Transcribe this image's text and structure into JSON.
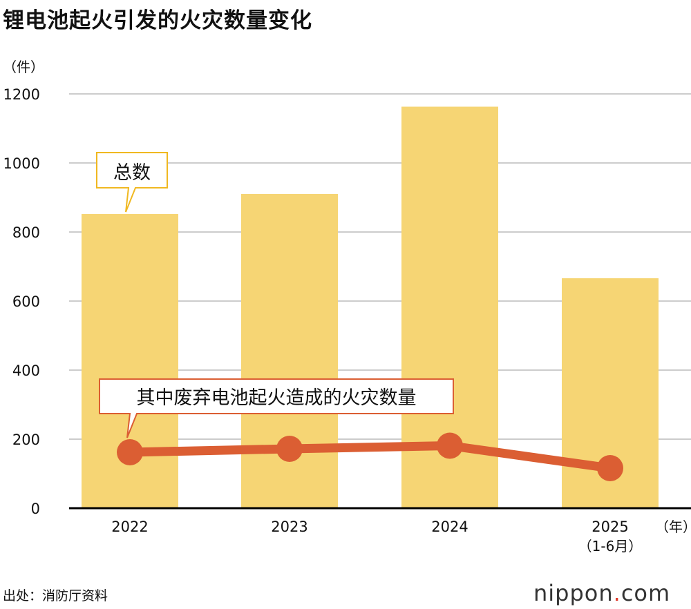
{
  "title": "锂电池起火引发的火灾数量变化",
  "source": "出处：消防厅资料",
  "logo": {
    "name": "nippon",
    "dot": ".",
    "suffix": "com"
  },
  "colors": {
    "bar": "#f6d574",
    "line": "#db5e33",
    "grid": "#cccccc",
    "axis": "#000000",
    "callout_total_border": "#f0b820",
    "callout_line_border": "#db5e33"
  },
  "chart_data": {
    "type": "bar+line",
    "title": "锂电池起火引发的火灾数量变化",
    "ylabel": "（件）",
    "xunit": "（年）",
    "categories": [
      "2022",
      "2023",
      "2024",
      "2025"
    ],
    "category_sublabels": [
      "",
      "",
      "",
      "（1-6月）"
    ],
    "ylim": [
      0,
      1200
    ],
    "yticks": [
      "0",
      "200",
      "400",
      "600",
      "800",
      "1000",
      "1200"
    ],
    "grid": true,
    "series": [
      {
        "name": "总数",
        "type": "bar",
        "values": [
          852,
          910,
          1163,
          666
        ]
      },
      {
        "name": "其中废弃电池起火造成的火灾数量",
        "type": "line",
        "values": [
          162,
          172,
          181,
          116
        ]
      }
    ]
  }
}
